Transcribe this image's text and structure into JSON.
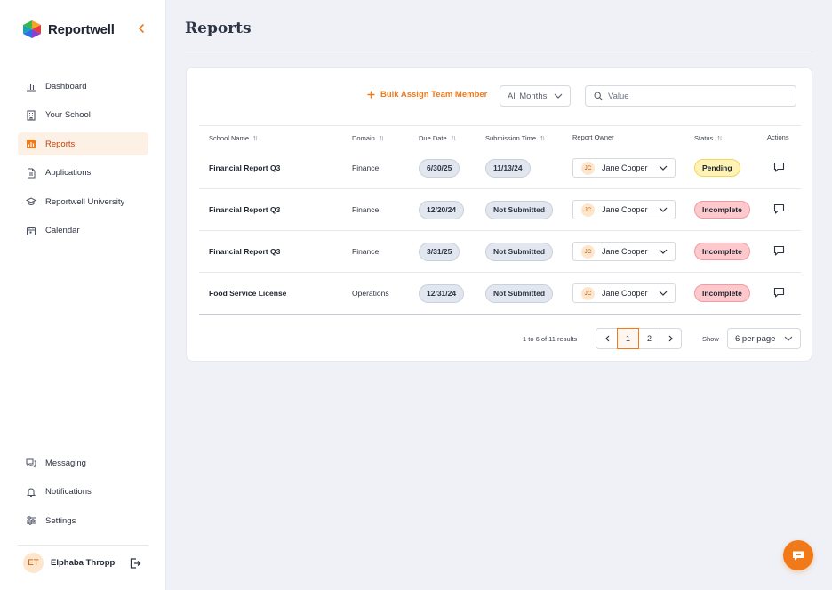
{
  "app": {
    "brand": "Reportwell",
    "accent_color": "#f07a1a"
  },
  "sidebar": {
    "items": [
      {
        "label": "Dashboard",
        "icon": "bar-chart-icon"
      },
      {
        "label": "Your School",
        "icon": "building-icon"
      },
      {
        "label": "Reports",
        "icon": "bar-chart-icon",
        "active": true
      },
      {
        "label": "Applications",
        "icon": "document-icon"
      },
      {
        "label": "Reportwell University",
        "icon": "graduation-cap-icon"
      },
      {
        "label": "Calendar",
        "icon": "calendar-icon"
      }
    ],
    "bottom_items": [
      {
        "label": "Messaging",
        "icon": "chat-bubbles-icon"
      },
      {
        "label": "Notifications",
        "icon": "bell-icon"
      },
      {
        "label": "Settings",
        "icon": "sliders-icon"
      }
    ],
    "user": {
      "initials": "ET",
      "name": "Elphaba Thropp"
    }
  },
  "header": {
    "title": "Reports"
  },
  "toolbar": {
    "bulk_assign_label": "Bulk Assign Team Member",
    "months_filter": "All Months",
    "search_placeholder": "Value"
  },
  "table": {
    "columns": [
      "School Name",
      "Domain",
      "Due Date",
      "Submission Time",
      "Report Owner",
      "Status",
      "Actions"
    ],
    "rows": [
      {
        "school": "Financial Report Q3",
        "domain": "Finance",
        "due": "6/30/25",
        "submission": "11/13/24",
        "owner_initials": "JC",
        "owner": "Jane Cooper",
        "status": "Pending"
      },
      {
        "school": "Financial Report Q3",
        "domain": "Finance",
        "due": "12/20/24",
        "submission": "Not Submitted",
        "owner_initials": "JC",
        "owner": "Jane Cooper",
        "status": "Incomplete"
      },
      {
        "school": "Financial Report Q3",
        "domain": "Finance",
        "due": "3/31/25",
        "submission": "Not Submitted",
        "owner_initials": "JC",
        "owner": "Jane Cooper",
        "status": "Incomplete"
      },
      {
        "school": "Food Service License",
        "domain": "Operations",
        "due": "12/31/24",
        "submission": "Not Submitted",
        "owner_initials": "JC",
        "owner": "Jane Cooper",
        "status": "Incomplete"
      }
    ]
  },
  "pagination": {
    "results_text": "1 to 6 of 11 results",
    "pages": [
      "1",
      "2"
    ],
    "current_page": "1",
    "show_label": "Show",
    "per_page": "6 per page"
  }
}
